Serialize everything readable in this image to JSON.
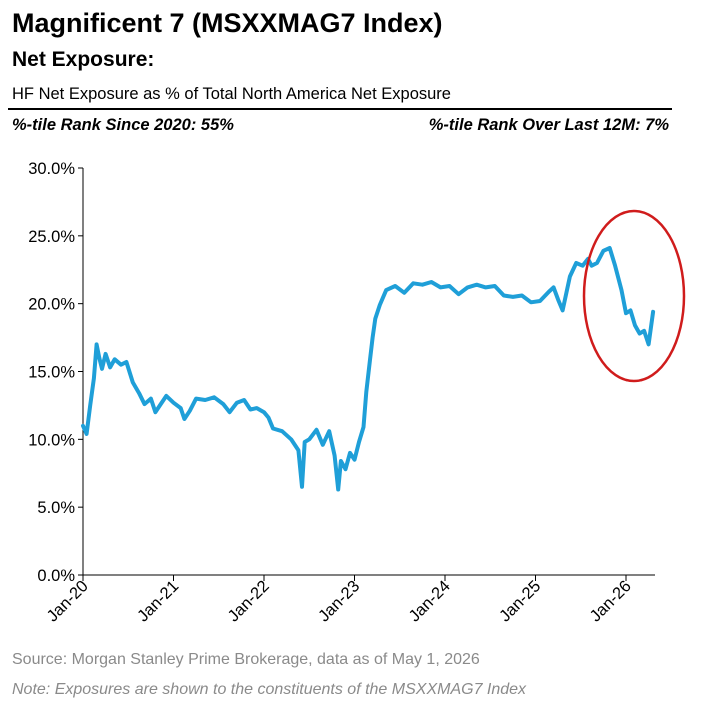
{
  "header": {
    "title": "Magnificent 7 (MSXXMAG7 Index)",
    "subtitle": "Net Exposure:",
    "description": "HF Net Exposure as % of Total North America Net Exposure",
    "rank_left": "%-tile Rank Since 2020: 55%",
    "rank_right": "%-tile Rank Over Last 12M: 7%"
  },
  "footer": {
    "source": "Source: Morgan Stanley Prime Brokerage, data as of May 1, 2026",
    "note": "Note: Exposures are shown to the constituents of the MSXXMAG7 Index"
  },
  "colors": {
    "series": "#1f9fd8",
    "highlight_circle": "#d01c1c"
  },
  "chart_data": {
    "type": "line",
    "title": "Magnificent 7 (MSXXMAG7 Index)",
    "ylabel": "",
    "xlabel": "",
    "ylim": [
      0,
      30
    ],
    "xlim": [
      2020.0,
      2026.33
    ],
    "grid": false,
    "yticks": [
      0,
      5,
      10,
      15,
      20,
      25,
      30
    ],
    "ytick_labels": [
      "0.0%",
      "5.0%",
      "10.0%",
      "15.0%",
      "20.0%",
      "25.0%",
      "30.0%"
    ],
    "xticks": [
      2020,
      2021,
      2022,
      2023,
      2024,
      2025,
      2026
    ],
    "xtick_labels": [
      "Jan-20",
      "Jan-21",
      "Jan-22",
      "Jan-23",
      "Jan-24",
      "Jan-25",
      "Jan-26"
    ],
    "series": [
      {
        "x": [
          2020.0,
          2020.04,
          2020.08,
          2020.12,
          2020.15,
          2020.18,
          2020.21,
          2020.25,
          2020.3,
          2020.35,
          2020.42,
          2020.48,
          2020.55,
          2020.62,
          2020.68,
          2020.75,
          2020.8,
          2020.85,
          2020.92,
          2021.0,
          2021.08,
          2021.12,
          2021.18,
          2021.25,
          2021.35,
          2021.45,
          2021.55,
          2021.62,
          2021.7,
          2021.78,
          2021.85,
          2021.92,
          2022.0,
          2022.05,
          2022.1,
          2022.2,
          2022.3,
          2022.38,
          2022.42,
          2022.45,
          2022.5,
          2022.58,
          2022.65,
          2022.72,
          2022.78,
          2022.82,
          2022.85,
          2022.9,
          2022.95,
          2023.0,
          2023.05,
          2023.1,
          2023.13,
          2023.17,
          2023.2,
          2023.23,
          2023.28,
          2023.35,
          2023.45,
          2023.55,
          2023.65,
          2023.75,
          2023.85,
          2023.95,
          2024.05,
          2024.15,
          2024.25,
          2024.35,
          2024.45,
          2024.55,
          2024.65,
          2024.75,
          2024.85,
          2024.95,
          2025.05,
          2025.15,
          2025.2,
          2025.25,
          2025.3,
          2025.38,
          2025.45,
          2025.52,
          2025.58,
          2025.62,
          2025.68,
          2025.75,
          2025.82,
          2025.88,
          2025.95,
          2026.0,
          2026.05,
          2026.1,
          2026.15,
          2026.2,
          2026.25,
          2026.3
        ],
        "y": [
          11.0,
          10.4,
          12.5,
          14.5,
          17.0,
          16.0,
          15.2,
          16.3,
          15.3,
          15.9,
          15.5,
          15.7,
          14.2,
          13.4,
          12.6,
          13.0,
          12.0,
          12.5,
          13.2,
          12.7,
          12.3,
          11.5,
          12.1,
          13.0,
          12.9,
          13.1,
          12.6,
          12.0,
          12.7,
          12.9,
          12.2,
          12.3,
          12.0,
          11.6,
          10.8,
          10.6,
          10.0,
          9.2,
          6.5,
          9.8,
          10.0,
          10.7,
          9.6,
          10.6,
          8.8,
          6.3,
          8.4,
          7.8,
          9.0,
          8.5,
          9.8,
          10.9,
          13.5,
          15.8,
          17.5,
          18.9,
          19.9,
          21.0,
          21.3,
          20.8,
          21.5,
          21.4,
          21.6,
          21.2,
          21.3,
          20.7,
          21.2,
          21.4,
          21.2,
          21.3,
          20.6,
          20.5,
          20.6,
          20.1,
          20.2,
          20.9,
          21.2,
          20.3,
          19.5,
          22.0,
          23.0,
          22.8,
          23.3,
          22.8,
          23.0,
          23.9,
          24.1,
          22.8,
          21.0,
          19.3,
          19.5,
          18.4,
          17.8,
          18.0,
          17.0,
          19.4
        ]
      }
    ],
    "annotations": [
      "highlight circle around last 12 months"
    ]
  }
}
